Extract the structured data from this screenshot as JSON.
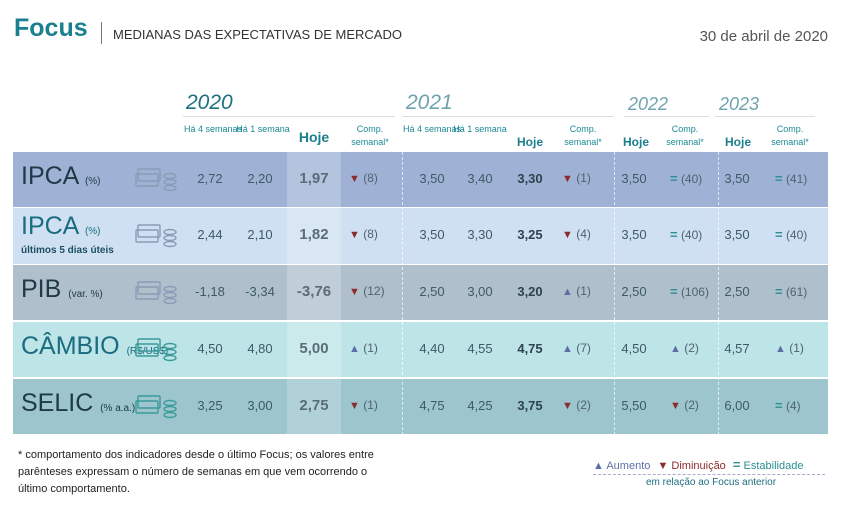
{
  "header": {
    "brand": "Focus",
    "subtitle": "MEDIANAS DAS EXPECTATIVAS DE MERCADO",
    "date": "30 de abril de 2020"
  },
  "years": [
    "2020",
    "2021",
    "2022",
    "2023"
  ],
  "columns": {
    "ha4": "Há 4 semanas",
    "ha1": "Há 1 semana",
    "hoje": "Hoje",
    "comp": "Comp. semanal*"
  },
  "colors": {
    "up": "#5d6ea6",
    "down": "#8b2b2b",
    "stable": "#2c8f93",
    "brand": "#1a7f8e"
  },
  "rows": [
    {
      "name": "IPCA",
      "unit": "(%)",
      "sub": "",
      "icon": "money-coins-icon",
      "bg": "#9fb2d5",
      "y2020": [
        "2,72",
        "2,20",
        "1,97",
        {
          "dir": "down",
          "n": "(8)"
        }
      ],
      "y2021": [
        "3,50",
        "3,40",
        "3,30",
        {
          "dir": "down",
          "n": "(1)"
        }
      ],
      "y2022": [
        "3,50",
        {
          "dir": "stable",
          "n": "(40)"
        }
      ],
      "y2023": [
        "3,50",
        {
          "dir": "stable",
          "n": "(41)"
        }
      ]
    },
    {
      "name": "IPCA",
      "unit": "(%)",
      "sub": "últimos 5 dias úteis",
      "icon": "money-coins-5-icon",
      "bg": "#cfe0f3",
      "y2020": [
        "2,44",
        "2,10",
        "1,82",
        {
          "dir": "down",
          "n": "(8)"
        }
      ],
      "y2021": [
        "3,50",
        "3,30",
        "3,25",
        {
          "dir": "down",
          "n": "(4)"
        }
      ],
      "y2022": [
        "3,50",
        {
          "dir": "stable",
          "n": "(40)"
        }
      ],
      "y2023": [
        "3,50",
        {
          "dir": "stable",
          "n": "(40)"
        }
      ]
    },
    {
      "name": "PIB",
      "unit": "(var. %)",
      "sub": "",
      "icon": "factory-tractor-icon",
      "bg": "#b0bfcc",
      "y2020": [
        "-1,18",
        "-3,34",
        "-3,76",
        {
          "dir": "down",
          "n": "(12)"
        }
      ],
      "y2021": [
        "2,50",
        "3,00",
        "3,20",
        {
          "dir": "up",
          "n": "(1)"
        }
      ],
      "y2022": [
        "2,50",
        {
          "dir": "stable",
          "n": "(106)"
        }
      ],
      "y2023": [
        "2,50",
        {
          "dir": "stable",
          "n": "(61)"
        }
      ]
    },
    {
      "name": "CÂMBIO",
      "unit": "(R$/US$)",
      "sub": "",
      "icon": "dollar-exchange-icon",
      "bg": "#bde4e6",
      "y2020": [
        "4,50",
        "4,80",
        "5,00",
        {
          "dir": "up",
          "n": "(1)"
        }
      ],
      "y2021": [
        "4,40",
        "4,55",
        "4,75",
        {
          "dir": "up",
          "n": "(7)"
        }
      ],
      "y2022": [
        "4,50",
        {
          "dir": "up",
          "n": "(2)"
        }
      ],
      "y2023": [
        "4,57",
        {
          "dir": "up",
          "n": "(1)"
        }
      ]
    },
    {
      "name": "SELIC",
      "unit": "(% a.a.)",
      "sub": "",
      "icon": "rate-chart-icon",
      "bg": "#9cc5cd",
      "y2020": [
        "3,25",
        "3,00",
        "2,75",
        {
          "dir": "down",
          "n": "(1)"
        }
      ],
      "y2021": [
        "4,75",
        "4,25",
        "3,75",
        {
          "dir": "down",
          "n": "(2)"
        }
      ],
      "y2022": [
        "5,50",
        {
          "dir": "down",
          "n": "(2)"
        }
      ],
      "y2023": [
        "6,00",
        {
          "dir": "stable",
          "n": "(4)"
        }
      ]
    }
  ],
  "footnote": "* comportamento dos indicadores desde o último Focus; os valores entre parênteses expressam o número de semanas em que vem ocorrendo o último comportamento.",
  "legend": {
    "up": "Aumento",
    "down": "Diminuição",
    "stable": "Estabilidade",
    "note": "em relação ao Focus anterior"
  }
}
